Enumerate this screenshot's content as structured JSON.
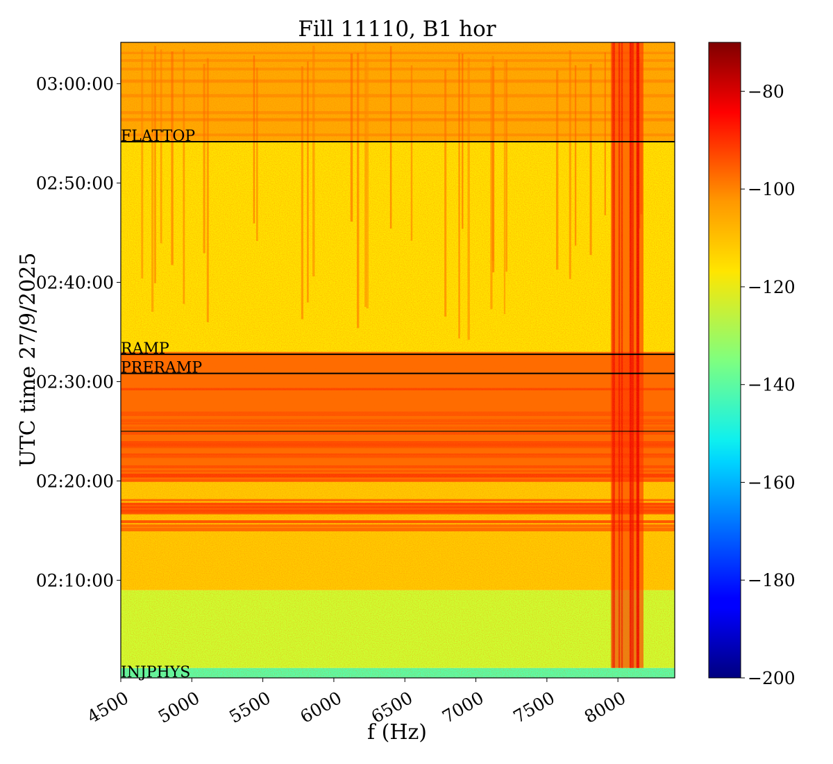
{
  "chart_data": {
    "type": "heatmap",
    "title": "Fill 11110, B1 hor",
    "xlabel": "f (Hz)",
    "ylabel": "UTC time 27/9/2025",
    "xlim": [
      4500,
      8400
    ],
    "ylim": [
      "02:00:10",
      "03:04:10"
    ],
    "x_ticks": [
      4500,
      5000,
      5500,
      6000,
      6500,
      7000,
      7500,
      8000
    ],
    "x_tick_labels": [
      "4500",
      "5000",
      "5500",
      "6000",
      "6500",
      "7000",
      "7500",
      "8000"
    ],
    "y_ticks": [
      "02:10:00",
      "02:20:00",
      "02:30:00",
      "02:40:00",
      "02:50:00",
      "03:00:00"
    ],
    "y_tick_labels": [
      "02:10:00",
      "02:20:00",
      "02:30:00",
      "02:40:00",
      "02:50:00",
      "03:00:00"
    ],
    "colormap": "jet",
    "colorbar": {
      "range": [
        -200,
        -70
      ],
      "ticks": [
        -200,
        -180,
        -160,
        -140,
        -120,
        -100,
        -80
      ],
      "tick_labels": [
        "−200",
        "−180",
        "−160",
        "−140",
        "−120",
        "−100",
        "−80"
      ]
    },
    "phase_markers": [
      {
        "label": "FLATTOP",
        "time": "02:54:10"
      },
      {
        "label": "RAMP",
        "time": "02:32:45"
      },
      {
        "label": "PRERAMP",
        "time": "02:30:50"
      },
      {
        "label": "",
        "time": "02:25:00"
      },
      {
        "label": "INJPHYS",
        "time": "02:00:10"
      }
    ],
    "approx_level_by_period": [
      {
        "from": "02:00:10",
        "to": "02:01:10",
        "level_db": -140
      },
      {
        "from": "02:01:10",
        "to": "02:09:00",
        "level_db": -125
      },
      {
        "from": "02:09:00",
        "to": "02:20:00",
        "level_db": -112
      },
      {
        "from": "02:20:00",
        "to": "02:33:00",
        "level_db": -100
      },
      {
        "from": "02:33:00",
        "to": "02:54:10",
        "level_db": -115
      },
      {
        "from": "02:54:10",
        "to": "03:04:10",
        "level_db": -108
      }
    ],
    "grid": false
  }
}
